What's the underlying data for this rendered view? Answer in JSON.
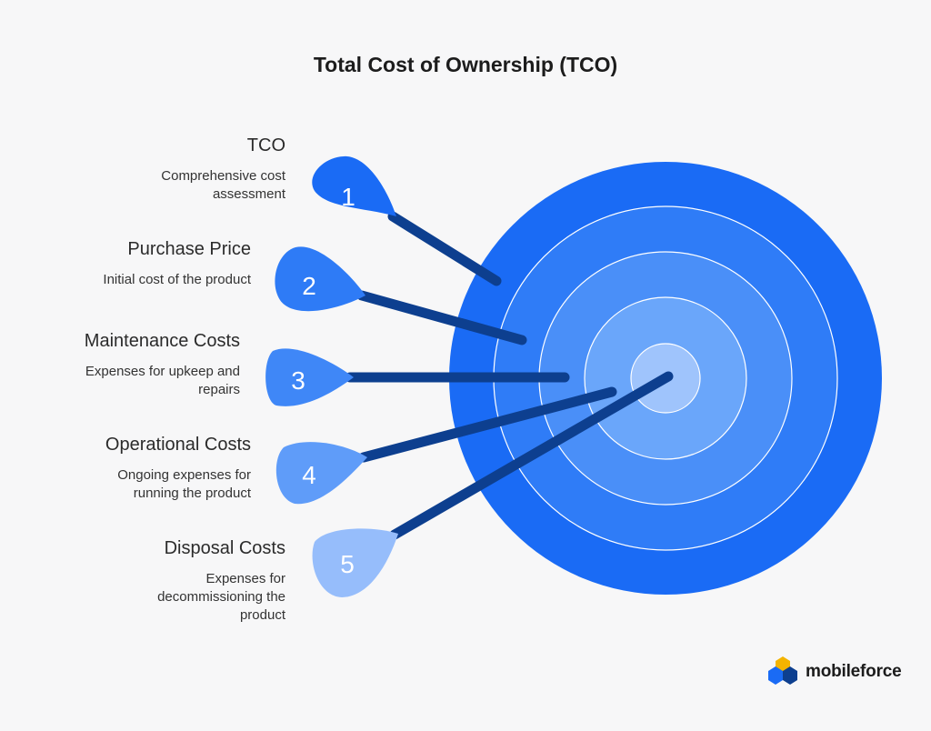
{
  "title": "Total Cost of Ownership (TCO)",
  "colors": {
    "background": "#f7f7f8",
    "ring_outer": "#1a6bf5",
    "ring_2": "#2f7cf7",
    "ring_3": "#4a8ff8",
    "ring_4": "#6aa6fa",
    "ring_center": "#9fc4fc",
    "dart_shaft": "#0d3f8f"
  },
  "items": [
    {
      "number": "1",
      "title": "TCO",
      "description": "Comprehensive cost assessment",
      "color": "#1a6bf5"
    },
    {
      "number": "2",
      "title": "Purchase Price",
      "description": "Initial cost of the product",
      "color": "#2e7bf6"
    },
    {
      "number": "3",
      "title": "Maintenance Costs",
      "description": "Expenses for upkeep and repairs",
      "color": "#3f87f7"
    },
    {
      "number": "4",
      "title": "Operational Costs",
      "description": "Ongoing expenses for running the product",
      "color": "#5f9cf9"
    },
    {
      "number": "5",
      "title": "Disposal Costs",
      "description": "Expenses for decommissioning the product",
      "color": "#96bdfb"
    }
  ],
  "logo": {
    "text": "mobileforce"
  }
}
